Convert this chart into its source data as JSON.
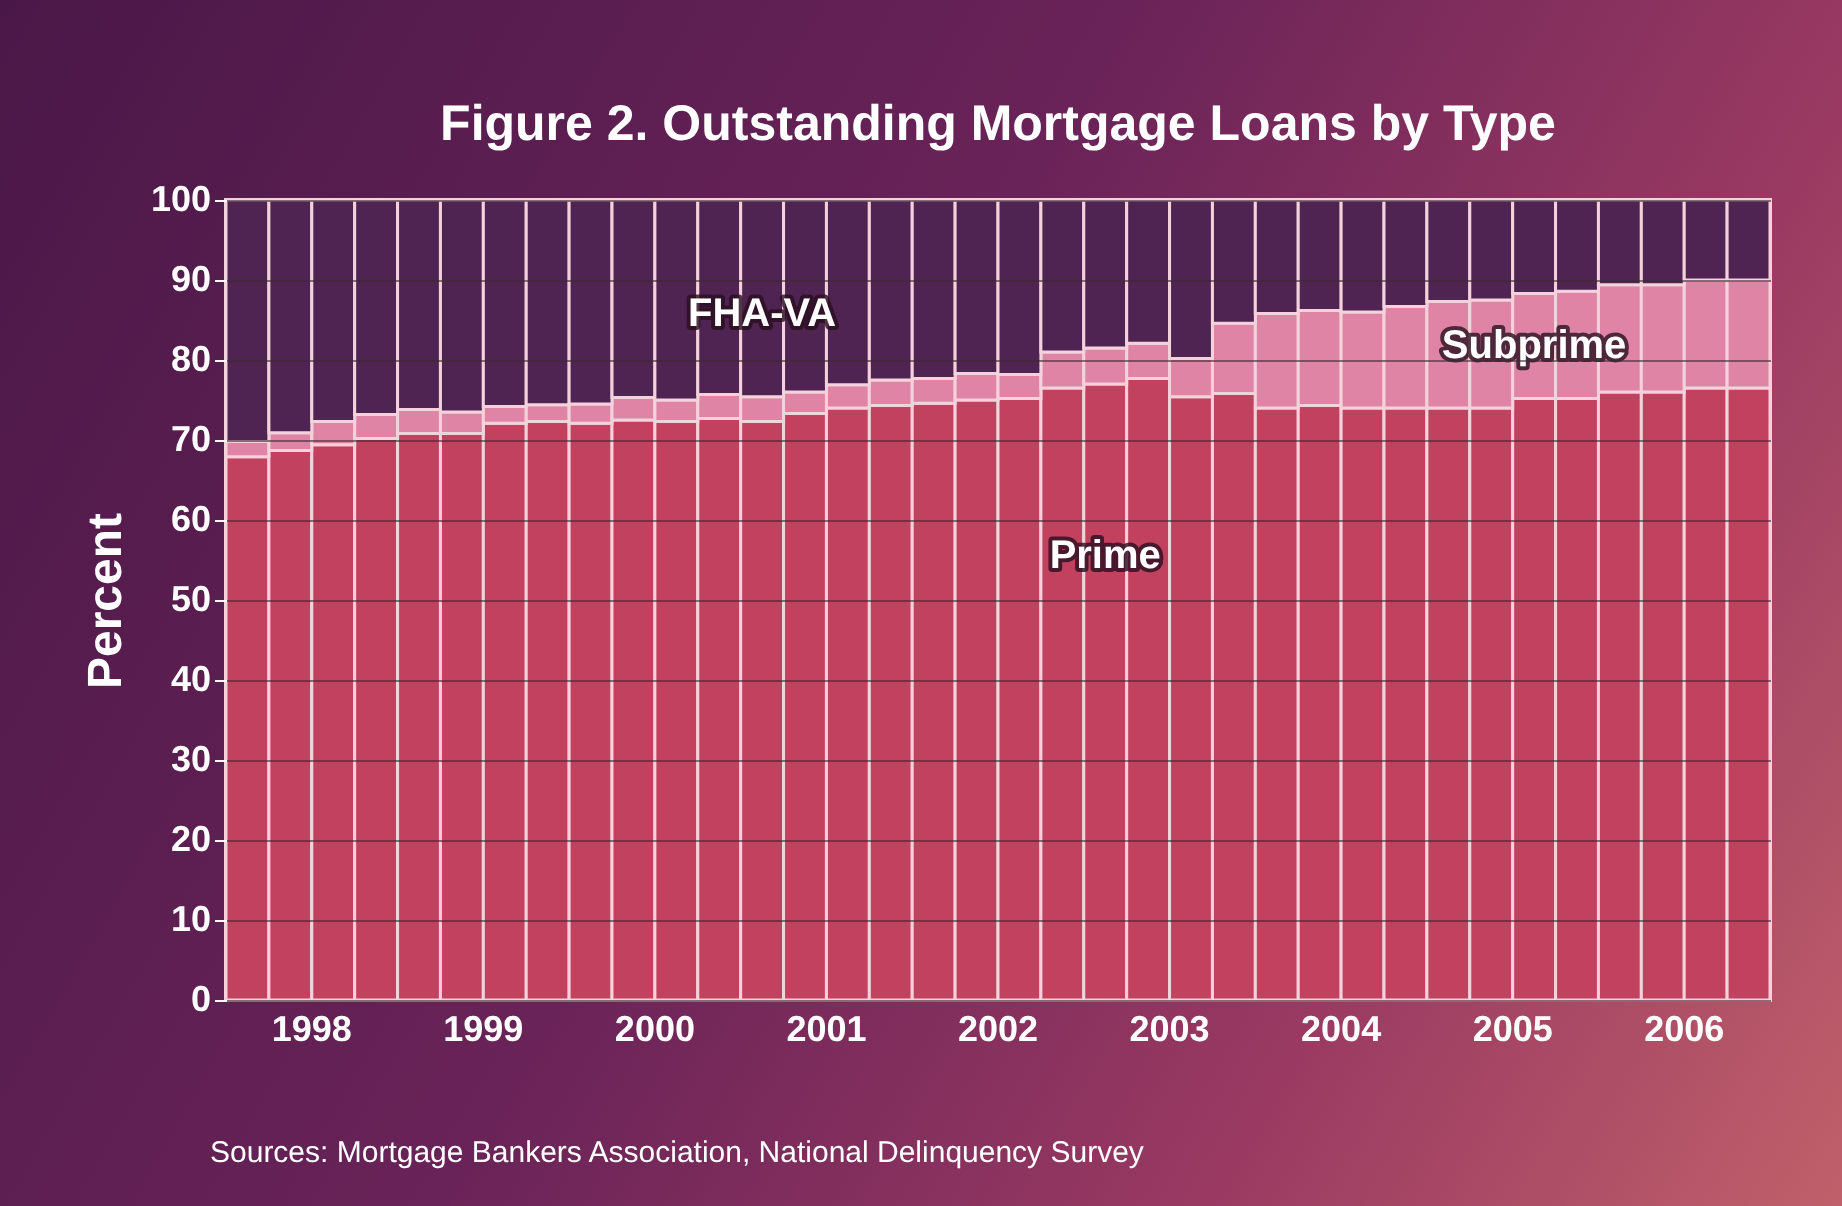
{
  "chart_data": {
    "type": "bar",
    "title": "Figure 2. Outstanding Mortgage Loans by Type",
    "ylabel": "Percent",
    "categories": [
      null,
      "1998",
      null,
      null,
      null,
      "1999",
      null,
      null,
      null,
      "2000",
      null,
      null,
      null,
      "2001",
      null,
      null,
      null,
      "2002",
      null,
      null,
      null,
      "2003",
      null,
      null,
      null,
      "2004",
      null,
      null,
      null,
      "2005",
      null,
      null,
      null,
      "2006",
      null,
      null
    ],
    "stacked": true,
    "series": [
      {
        "name": "Prime",
        "color": "#c2415f",
        "values": [
          67.9,
          68.7,
          69.4,
          70.2,
          70.8,
          70.8,
          72.1,
          72.3,
          72.1,
          72.5,
          72.3,
          72.7,
          72.3,
          73.3,
          74.0,
          74.3,
          74.6,
          75.0,
          75.2,
          76.5,
          77.0,
          77.7,
          75.4,
          75.8,
          74.0,
          74.3,
          74.0,
          74.0,
          74.0,
          74.0,
          75.2,
          75.2,
          76.0,
          76.0,
          76.5,
          76.5
        ]
      },
      {
        "name": "Subprime",
        "color": "#e084a5",
        "values": [
          1.9,
          2.2,
          2.9,
          3.0,
          3.0,
          2.7,
          2.1,
          2.1,
          2.4,
          2.8,
          2.7,
          3.0,
          3.1,
          2.7,
          2.9,
          3.2,
          3.1,
          3.3,
          3.0,
          4.5,
          4.5,
          4.4,
          4.8,
          8.8,
          11.8,
          11.9,
          12.0,
          12.7,
          13.3,
          13.5,
          13.1,
          13.4,
          13.4,
          13.4,
          13.5,
          13.5
        ]
      },
      {
        "name": "FHA-VA",
        "color": "#4f2452",
        "values": [
          30.2,
          29.1,
          27.7,
          26.8,
          26.2,
          26.5,
          25.8,
          25.6,
          25.5,
          24.7,
          25.0,
          24.3,
          24.6,
          24.0,
          23.1,
          22.5,
          22.3,
          21.7,
          21.8,
          19.0,
          18.5,
          17.9,
          19.8,
          15.4,
          14.2,
          13.8,
          14.0,
          13.3,
          12.7,
          12.5,
          11.7,
          11.4,
          10.6,
          10.6,
          10.0,
          10.0
        ]
      }
    ],
    "ylim": [
      0,
      100
    ],
    "yticks": [
      0,
      10,
      20,
      30,
      40,
      50,
      60,
      70,
      80,
      90,
      100
    ],
    "grid": "y",
    "legend": false,
    "annotations": [
      "Sources: Mortgage Bankers Association, National Delinquency Survey"
    ]
  }
}
